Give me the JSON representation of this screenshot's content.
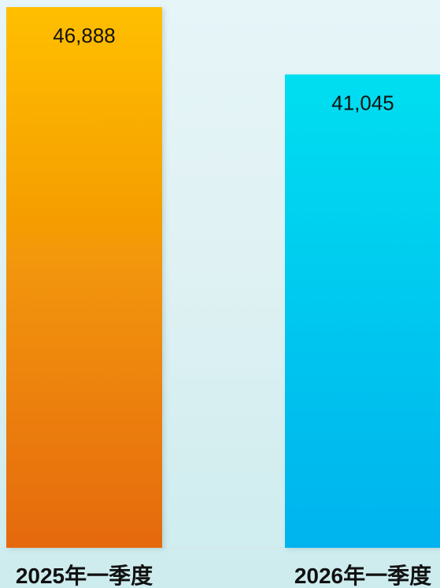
{
  "chart_data": {
    "type": "bar",
    "categories": [
      "2025年一季度",
      "2026年一季度"
    ],
    "values": [
      46888,
      41045
    ],
    "value_labels": [
      "46,888",
      "41,045"
    ],
    "colors": {
      "bar_1_top": "#ffbf00",
      "bar_1_bottom": "#e5690f",
      "bar_2_top": "#00def0",
      "bar_2_bottom": "#00b3ee"
    },
    "ylim": [
      0,
      46888
    ],
    "grid": false,
    "legend": "none"
  }
}
